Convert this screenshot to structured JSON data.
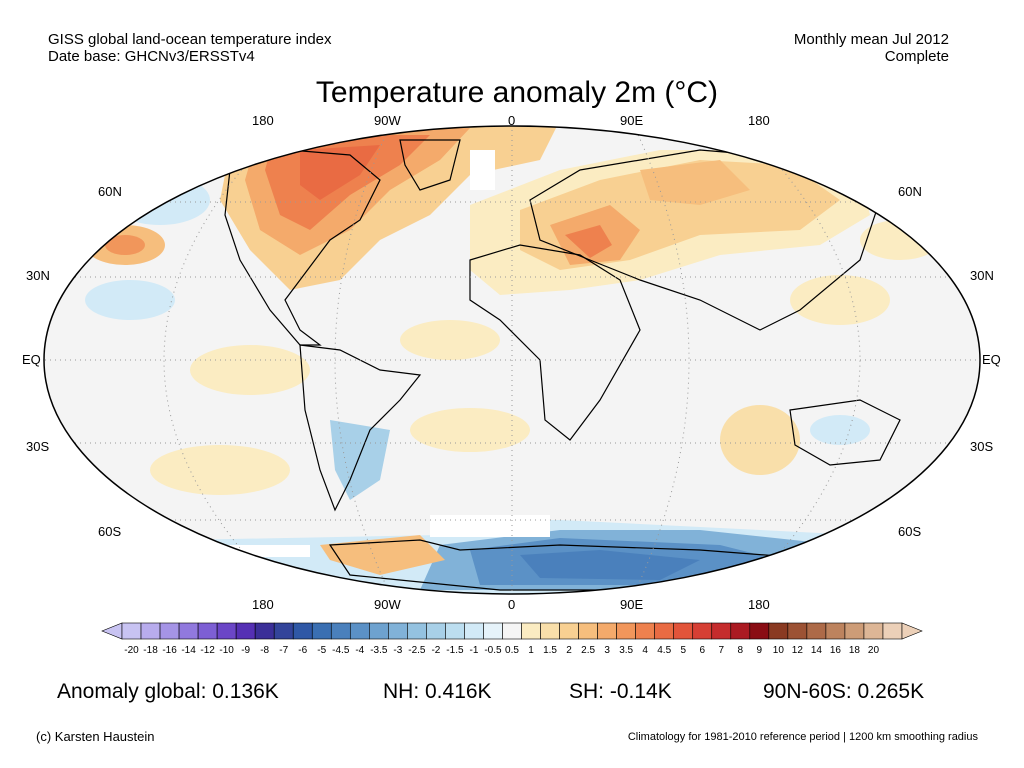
{
  "header": {
    "line1_left": "GISS global land-ocean temperature index",
    "line2_left": "Date base: GHCNv3/ERSSTv4",
    "line1_right": "Monthly mean Jul 2012",
    "line2_right": "Complete"
  },
  "title": "Temperature anomaly 2m (°C)",
  "map": {
    "lon_labels": [
      "180",
      "90W",
      "0",
      "90E",
      "180"
    ],
    "lat_labels": [
      "60N",
      "30N",
      "EQ",
      "30S",
      "60S"
    ]
  },
  "colorbar": {
    "labels": [
      "-20",
      "-18",
      "-16",
      "-14",
      "-12",
      "-10",
      "-9",
      "-8",
      "-7",
      "-6",
      "-5",
      "-4.5",
      "-4",
      "-3.5",
      "-3",
      "-2.5",
      "-2",
      "-1.5",
      "-1",
      "-0.5",
      "0.5",
      "1",
      "1.5",
      "2",
      "2.5",
      "3",
      "3.5",
      "4",
      "4.5",
      "5",
      "6",
      "7",
      "8",
      "9",
      "10",
      "12",
      "14",
      "16",
      "18",
      "20"
    ],
    "colors": [
      "#c8c3f2",
      "#b8aced",
      "#a594e6",
      "#9179de",
      "#7d5fd4",
      "#6b46c7",
      "#5530b4",
      "#3b2f98",
      "#33449a",
      "#2f58a6",
      "#3a6fb2",
      "#4a80bc",
      "#5b91c6",
      "#6ea2cf",
      "#81b2d8",
      "#94c2e0",
      "#a8d0e8",
      "#bcdef0",
      "#d2eaf7",
      "#e6f3fa",
      "#f5f5f5",
      "#fbecc2",
      "#f9dfaa",
      "#f8d092",
      "#f6be7d",
      "#f4aa6b",
      "#f1965b",
      "#ee814e",
      "#e96b43",
      "#e2543a",
      "#d63f34",
      "#c52c2d",
      "#ab1a22",
      "#8a0d14",
      "#8a3a22",
      "#9c5234",
      "#ad6a48",
      "#bd835e",
      "#cd9c77",
      "#ddb696",
      "#ecd0b8"
    ]
  },
  "stats": {
    "global": "Anomaly global: 0.136K",
    "nh": "NH: 0.416K",
    "sh": "SH: -0.14K",
    "band": "90N-60S: 0.265K"
  },
  "footer": {
    "left": "(c) Karsten Haustein",
    "right": "Climatology for 1981-2010 reference period | 1200 km smoothing radius"
  }
}
